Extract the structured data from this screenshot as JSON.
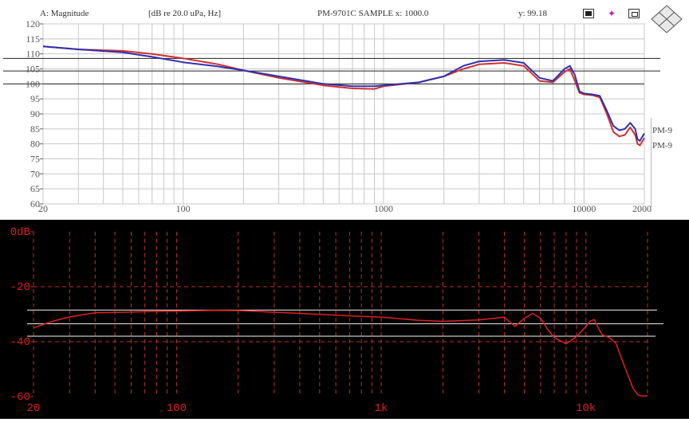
{
  "top_chart": {
    "header_a": "A: Magnitude",
    "header_units": "[dB re 20.0 uPa, Hz]",
    "header_sample": "PM-9701C SAMPLE x: 1000.0",
    "header_y": "y: 99.18",
    "side_labels": [
      "PM-9",
      "PM-9"
    ],
    "colors": {
      "red": "#d03030",
      "blue": "#3030b0",
      "grid": "#c8c8c8",
      "frame": "#606060"
    }
  },
  "chart_data": [
    {
      "type": "line",
      "x_scale": "log",
      "xlim": [
        20,
        20000
      ],
      "ylim": [
        60,
        120
      ],
      "y_ticks": [
        60,
        65,
        70,
        75,
        80,
        85,
        90,
        95,
        100,
        105,
        110,
        115,
        120
      ],
      "y_tick_labels": [
        "60",
        "65",
        "70",
        "75",
        "80",
        "85",
        "90",
        "95",
        "100",
        "105",
        "110",
        "115",
        "120"
      ],
      "x_ticks": [
        20,
        100,
        1000,
        10000,
        20000
      ],
      "x_tick_labels": [
        "20",
        "100",
        "1000",
        "10000",
        "20000"
      ],
      "reference_lines_y": [
        108.5,
        104.3,
        100.0
      ],
      "series": [
        {
          "color": "#d03030",
          "x": [
            20,
            30,
            50,
            70,
            100,
            150,
            200,
            300,
            500,
            700,
            900,
            1000,
            1500,
            2000,
            2500,
            3000,
            4000,
            5000,
            6000,
            7000,
            8000,
            8500,
            9000,
            9500,
            10000,
            11000,
            12000,
            13000,
            14000,
            15000,
            16000,
            17000,
            18000,
            18500,
            19000,
            20000
          ],
          "y": [
            112.5,
            111.5,
            111,
            110,
            108.5,
            106.5,
            104.5,
            102,
            99.5,
            98.5,
            98.3,
            99.2,
            100.5,
            102.5,
            105,
            106.5,
            107,
            106,
            101,
            100.5,
            104,
            105,
            101,
            97,
            96.5,
            96.2,
            95.5,
            90,
            84,
            82.5,
            83,
            85.5,
            83,
            80,
            79.5,
            82
          ]
        },
        {
          "color": "#3030b0",
          "x": [
            20,
            30,
            50,
            70,
            100,
            150,
            200,
            300,
            500,
            700,
            900,
            1000,
            1500,
            2000,
            2500,
            3000,
            4000,
            5000,
            6000,
            7000,
            8000,
            8500,
            9000,
            9500,
            10000,
            11000,
            12000,
            13000,
            14000,
            15000,
            16000,
            17000,
            18000,
            18500,
            19000,
            20000
          ],
          "y": [
            112.5,
            111.5,
            110.5,
            109,
            107.2,
            105.8,
            104.5,
            102.5,
            100,
            99.2,
            99.2,
            99.5,
            100.5,
            102.5,
            106,
            107.5,
            108,
            107,
            102,
            101,
            105,
            106,
            103,
            97.5,
            96.8,
            96.5,
            96,
            91,
            86,
            84.5,
            85,
            87,
            85,
            81.5,
            81,
            83.5
          ]
        }
      ]
    },
    {
      "type": "line",
      "x_scale": "log",
      "xlim": [
        20,
        20000
      ],
      "ylim": [
        -60,
        0
      ],
      "y_ticks": [
        0,
        -20,
        -40,
        -60
      ],
      "y_tick_labels": [
        "0dB",
        "-20",
        "-40",
        "-60"
      ],
      "x_ticks": [
        20,
        100,
        1000,
        10000
      ],
      "x_tick_labels": [
        "20",
        "100",
        "1k",
        "10k"
      ],
      "reference_lines_y": [
        -28.5,
        -33.5,
        -38.0
      ],
      "series": [
        {
          "color": "#e02020",
          "x": [
            20,
            25,
            30,
            40,
            50,
            70,
            100,
            150,
            200,
            300,
            500,
            700,
            1000,
            1500,
            2000,
            3000,
            4000,
            4500,
            5000,
            5500,
            6000,
            6500,
            7000,
            8000,
            9000,
            10000,
            10500,
            11000,
            11500,
            12000,
            13000,
            14000,
            15000,
            16000,
            17000,
            18000,
            19000,
            20000
          ],
          "y": [
            -35,
            -32.5,
            -31,
            -29.5,
            -29.4,
            -29.1,
            -28.9,
            -28.6,
            -28.7,
            -29.3,
            -30.1,
            -30.6,
            -31.1,
            -32.2,
            -32.6,
            -32.1,
            -31.1,
            -34.5,
            -31.5,
            -29.7,
            -31.5,
            -35.5,
            -38.5,
            -40.8,
            -38.2,
            -34.5,
            -32.5,
            -32,
            -35,
            -37.5,
            -38.5,
            -40.5,
            -46.5,
            -52,
            -57,
            -59.5,
            -59.8,
            -59.8
          ]
        }
      ]
    }
  ]
}
